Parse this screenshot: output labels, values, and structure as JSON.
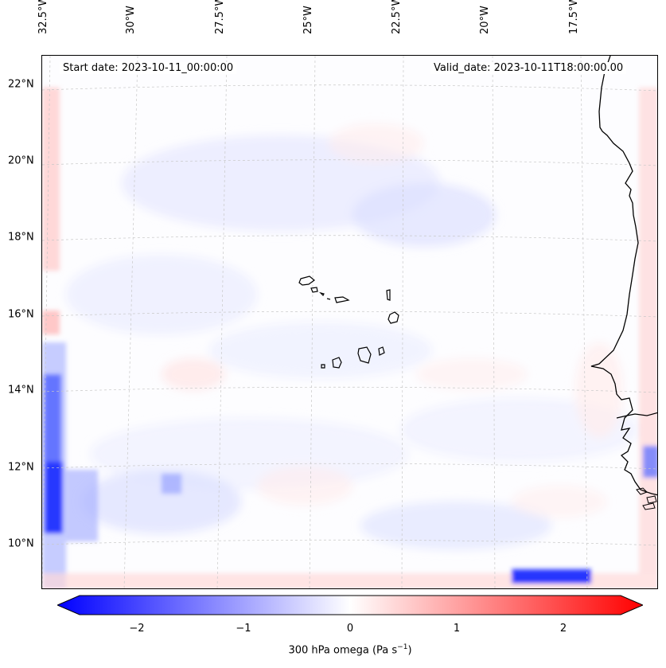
{
  "map": {
    "start_date_text": "Start date: 2023-10-11_00:00:00",
    "valid_date_text": "Valid_date: 2023-10-11T18:00:00.00",
    "lon_labels": [
      "32.5°W",
      "30°W",
      "27.5°W",
      "25°W",
      "22.5°W",
      "20°W",
      "17.5°W"
    ],
    "lat_labels": [
      "22°N",
      "20°N",
      "18°N",
      "16°N",
      "14°N",
      "12°N",
      "10°N"
    ],
    "colorbar": {
      "ticks": [
        "−2",
        "−1",
        "0",
        "1",
        "2"
      ],
      "label": "300 hPa omega (Pa s",
      "label_exp": "−1",
      "label_end": ")",
      "min_color": "#0000ff",
      "mid_color": "#ffffff",
      "max_color": "#ff0000"
    }
  }
}
